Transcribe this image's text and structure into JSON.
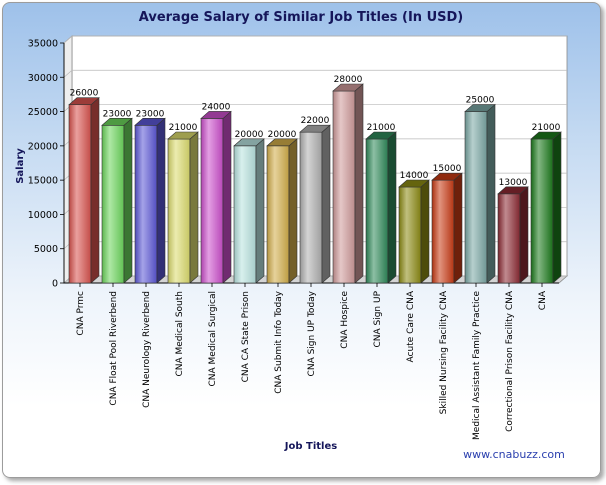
{
  "chart_data": {
    "type": "bar",
    "title": "Average Salary of Similar Job Titles (In USD)",
    "xlabel": "Job Titles",
    "ylabel": "Salary",
    "ylim": [
      0,
      35000
    ],
    "yticks": [
      "0",
      "5000",
      "10000",
      "15000",
      "20000",
      "25000",
      "30000",
      "35000"
    ],
    "grid": true,
    "categories": [
      "CNA Prmc",
      "CNA Float Pool Riverbend",
      "CNA Neurology Riverbend",
      "CNA Medical South",
      "CNA Medical Surgical",
      "CNA CA State Prison",
      "CNA Submit Info Today",
      "CNA Sign UP Today",
      "CNA Hospice",
      "CNA Sign UP",
      "Acute Care CNA",
      "Skilled Nursing Facility CNA",
      "Medical Assistant Family Practice",
      "Correctional Prison Facility CNA",
      "CNA"
    ],
    "values": [
      26000,
      23000,
      23000,
      21000,
      24000,
      20000,
      20000,
      22000,
      28000,
      21000,
      14000,
      15000,
      25000,
      13000,
      21000
    ],
    "value_labels": [
      "26000",
      "23000",
      "23000",
      "21000",
      "24000",
      "20000",
      "20000",
      "22000",
      "28000",
      "21000",
      "14000",
      "15000",
      "25000",
      "13000",
      "21000"
    ],
    "colors": [
      "#d9534f",
      "#6cd65c",
      "#5b57d6",
      "#dcdc6e",
      "#cc4fcc",
      "#b8e3df",
      "#d2ae4a",
      "#b0b0b0",
      "#cf9a9a",
      "#2f8a5a",
      "#8c8b14",
      "#c83a14",
      "#7aa7a4",
      "#8c2a34",
      "#1c7a1c"
    ]
  },
  "watermark": "www.cnabuzz.com"
}
